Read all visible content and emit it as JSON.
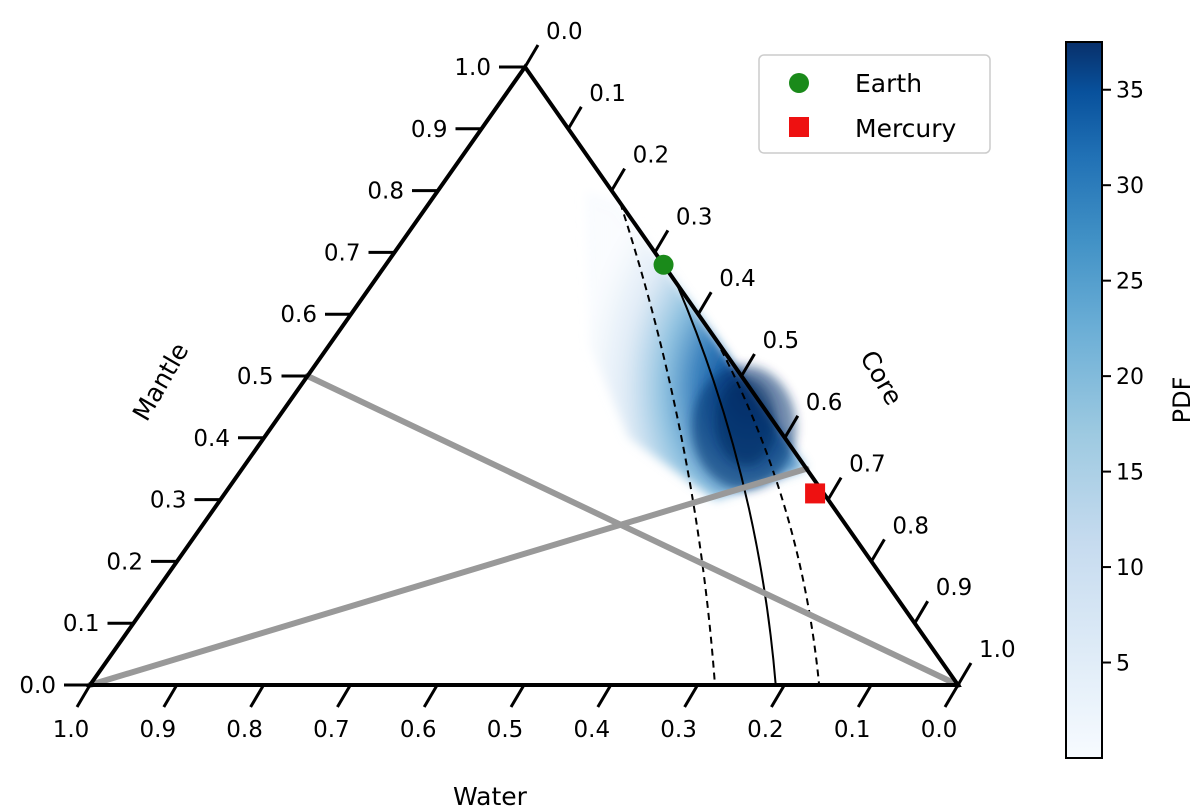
{
  "chart_data": {
    "type": "scatter",
    "subtype": "ternary",
    "title": "",
    "axes": {
      "left": {
        "label": "Mantle",
        "ticks": [
          "0.0",
          "0.1",
          "0.2",
          "0.3",
          "0.4",
          "0.5",
          "0.6",
          "0.7",
          "0.8",
          "0.9",
          "1.0"
        ]
      },
      "right": {
        "label": "Core",
        "ticks": [
          "0.0",
          "0.1",
          "0.2",
          "0.3",
          "0.4",
          "0.5",
          "0.6",
          "0.7",
          "0.8",
          "0.9",
          "1.0"
        ]
      },
      "bottom": {
        "label": "Water",
        "ticks": [
          "1.0",
          "0.9",
          "0.8",
          "0.7",
          "0.6",
          "0.5",
          "0.4",
          "0.3",
          "0.2",
          "0.1",
          "0.0"
        ]
      }
    },
    "density": {
      "description_values": "posterior samples colored by PDF",
      "colormap": "Blues",
      "peak": {
        "core": 0.55,
        "mantle": 0.42,
        "water": 0.03
      },
      "max_pdf": 37.5
    },
    "points": [
      {
        "name": "Earth",
        "marker": "circle",
        "color": "#1a8a1a",
        "core": 0.32,
        "mantle": 0.68,
        "water": 0.0
      },
      {
        "name": "Mercury",
        "marker": "square",
        "color": "#ee1111",
        "core": 0.68,
        "mantle": 0.31,
        "water": 0.01
      }
    ],
    "guide_lines": [
      {
        "color": "#999999",
        "from": {
          "core": 0.0,
          "mantle": 0.5,
          "water": 0.5
        },
        "to": {
          "core": 1.0,
          "mantle": 0.0,
          "water": 0.0
        }
      },
      {
        "color": "#999999",
        "from": {
          "core": 0.0,
          "mantle": 0.0,
          "water": 1.0
        },
        "to": {
          "core": 0.65,
          "mantle": 0.35,
          "water": 0.0
        }
      }
    ],
    "contours": [
      {
        "style": "dashed",
        "core_at_top": 0.22,
        "core_at_base": 0.72
      },
      {
        "style": "solid",
        "core_at_top": 0.35,
        "core_at_base": 0.79
      },
      {
        "style": "dashed",
        "core_at_top": 0.44,
        "core_at_base": 0.84
      }
    ],
    "legend": {
      "placement": "top-right",
      "entries": [
        {
          "label": "Earth",
          "marker": "circle",
          "color": "#1a8a1a"
        },
        {
          "label": "Mercury",
          "marker": "square",
          "color": "#ee1111"
        }
      ]
    },
    "colorbar": {
      "label": "PDF",
      "range": [
        0,
        37.5
      ],
      "ticks": [
        5,
        10,
        15,
        20,
        25,
        30,
        35
      ],
      "color_low": "#f7fbff",
      "color_high": "#08306b"
    }
  }
}
